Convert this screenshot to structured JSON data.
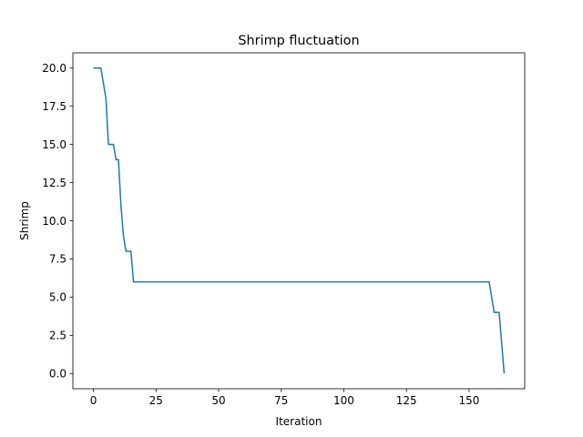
{
  "chart_data": {
    "type": "line",
    "title": "Shrimp fluctuation",
    "xlabel": "Iteration",
    "ylabel": "Shrimp",
    "xlim": [
      -8.2,
      172.2
    ],
    "ylim": [
      -1.0,
      21.0
    ],
    "xticks": [
      0,
      25,
      50,
      75,
      100,
      125,
      150
    ],
    "yticks": [
      0.0,
      2.5,
      5.0,
      7.5,
      10.0,
      12.5,
      15.0,
      17.5,
      20.0
    ],
    "xtick_labels": [
      "0",
      "25",
      "50",
      "75",
      "100",
      "125",
      "150"
    ],
    "ytick_labels": [
      "0.0",
      "2.5",
      "5.0",
      "7.5",
      "10.0",
      "12.5",
      "15.0",
      "17.5",
      "20.0"
    ],
    "grid": false,
    "line_color": "#1f77b4",
    "series": [
      {
        "x": [
          0,
          1,
          2,
          3,
          4,
          5,
          6,
          7,
          8,
          9,
          10,
          11,
          12,
          13,
          14,
          15,
          16,
          20,
          40,
          60,
          80,
          100,
          120,
          140,
          155,
          158,
          159,
          160,
          161,
          162,
          163,
          164
        ],
        "values": [
          20,
          20,
          20,
          20,
          19,
          18,
          15,
          15,
          15,
          14,
          14,
          11,
          9,
          8,
          8,
          8,
          6,
          6,
          6,
          6,
          6,
          6,
          6,
          6,
          6,
          6,
          5,
          4,
          4,
          4,
          2,
          0
        ]
      }
    ]
  }
}
